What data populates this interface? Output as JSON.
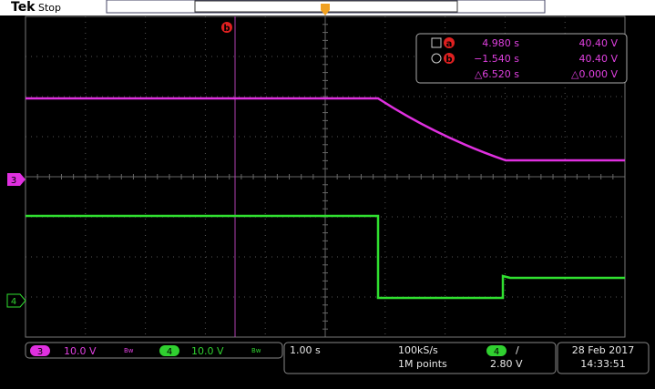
{
  "header": {
    "brand": "Tek",
    "status": "Stop"
  },
  "cursors": {
    "a_label": "a",
    "b_label": "b",
    "readout": [
      {
        "marker": "a",
        "time": "4.980 s",
        "voltage": "40.40 V"
      },
      {
        "marker": "b",
        "time": "−1.540 s",
        "voltage": "40.40 V"
      },
      {
        "time": "△6.520 s",
        "voltage": "△0.000 V"
      }
    ]
  },
  "channels": [
    {
      "number": "3",
      "scale": "10.0 V",
      "bw": "Bw"
    },
    {
      "number": "4",
      "scale": "10.0 V",
      "bw": "Bw"
    }
  ],
  "acquisition": {
    "timebase": "1.00 s",
    "sample_rate": "100kS/s",
    "record_length": "1M points",
    "trigger_source": "4",
    "trigger_slope": "/",
    "trigger_level": "2.80 V"
  },
  "datetime": {
    "date": "28 Feb 2017",
    "time": "14:33:51"
  }
}
